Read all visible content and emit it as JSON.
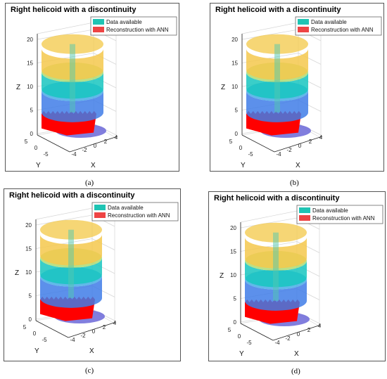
{
  "colors": {
    "available_swatch": "#1fc4b4",
    "ann_swatch": "#ee4444",
    "reconstruction": "#ff0000",
    "layer_blue": "#3f7de8",
    "layer_cyan": "#17c6c0",
    "layer_yellow": "#f5c84c",
    "layer_violet": "#6b67d8"
  },
  "chart_data": [
    {
      "type": "surface3d",
      "panel_label": "(a)",
      "title": "Right helicoid with a discontinuity",
      "legend": [
        "Data available",
        "Reconstruction with ANN"
      ],
      "legend_placement": "top-right",
      "zlabel": "Z",
      "xlabel": "X",
      "ylabel": "Y",
      "z_ticks": [
        "0",
        "5",
        "10",
        "15",
        "20"
      ],
      "x_ticks": [
        "-4",
        "-2",
        "0",
        "2",
        "4"
      ],
      "y_ticks": [
        "5",
        "0",
        "-5"
      ],
      "zlim": [
        0,
        22
      ],
      "xlim": [
        -5,
        5
      ],
      "ylim": [
        -5,
        5
      ],
      "reconstruction_region_z": [
        0.8,
        4.5
      ],
      "grid": true
    },
    {
      "type": "surface3d",
      "panel_label": "(b)",
      "title": "Right helicoid with a discontinuity",
      "legend": [
        "Data available",
        "Reconstruction with ANN"
      ],
      "legend_placement": "top-right",
      "zlabel": "Z",
      "xlabel": "X",
      "ylabel": "Y",
      "z_ticks": [
        "0",
        "5",
        "10",
        "15",
        "20"
      ],
      "x_ticks": [
        "-4",
        "-2",
        "0",
        "2",
        "4"
      ],
      "y_ticks": [
        "5",
        "0",
        "-5"
      ],
      "zlim": [
        0,
        22
      ],
      "xlim": [
        -5,
        5
      ],
      "ylim": [
        -5,
        5
      ],
      "reconstruction_region_z": [
        0.8,
        4.5
      ],
      "grid": true
    },
    {
      "type": "surface3d",
      "panel_label": "(c)",
      "title": "Right helicoid with a discontinuity",
      "legend": [
        "Data available",
        "Reconstruction with ANN"
      ],
      "legend_placement": "top-right",
      "zlabel": "Z",
      "xlabel": "X",
      "ylabel": "Y",
      "z_ticks": [
        "0",
        "5",
        "10",
        "15",
        "20"
      ],
      "x_ticks": [
        "-4",
        "-2",
        "0",
        "2",
        "4"
      ],
      "y_ticks": [
        "5",
        "0",
        "-5"
      ],
      "zlim": [
        0,
        22
      ],
      "xlim": [
        -5,
        5
      ],
      "ylim": [
        -5,
        5
      ],
      "reconstruction_region_z": [
        0.8,
        4.5
      ],
      "grid": true
    },
    {
      "type": "surface3d",
      "panel_label": "(d)",
      "title": "Right helicoid with a discontinuity",
      "legend": [
        "Data available",
        "Reconstruction with ANN"
      ],
      "legend_placement": "top-right",
      "zlabel": "Z",
      "xlabel": "X",
      "ylabel": "Y",
      "z_ticks": [
        "0",
        "5",
        "10",
        "15",
        "20"
      ],
      "x_ticks": [
        "-4",
        "-2",
        "0",
        "2",
        "4"
      ],
      "y_ticks": [
        "5",
        "0",
        "-5"
      ],
      "zlim": [
        0,
        22
      ],
      "xlim": [
        -5,
        5
      ],
      "ylim": [
        -5,
        5
      ],
      "reconstruction_region_z": [
        0.8,
        4.5
      ],
      "grid": true
    }
  ]
}
